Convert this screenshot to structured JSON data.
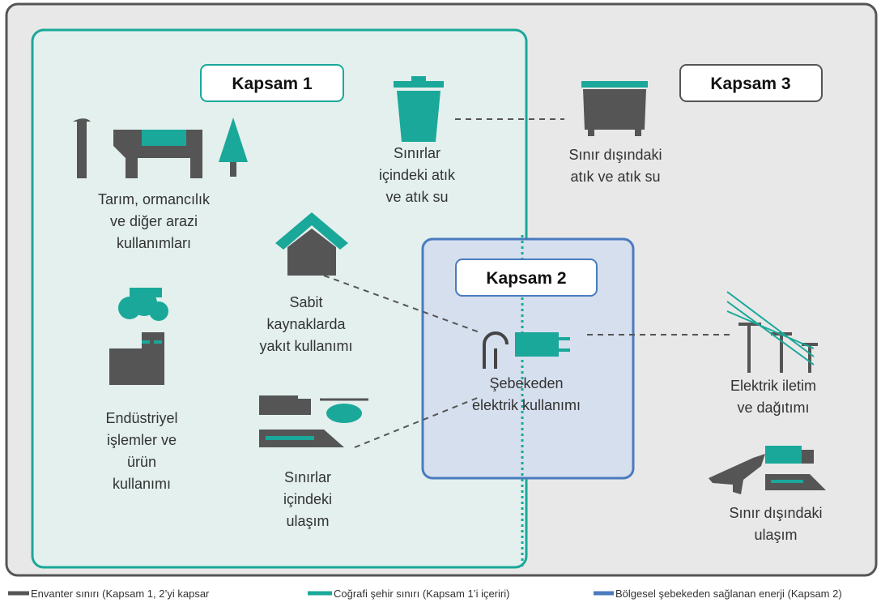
{
  "scopes": {
    "scope1": "Kapsam 1",
    "scope2": "Kapsam 2",
    "scope3": "Kapsam 3"
  },
  "items": [
    {
      "lines": [
        "Tarım, ormancılık",
        "ve diğer arazi",
        "kullanımları"
      ]
    },
    {
      "lines": [
        "Sınırlar",
        "içindeki atık",
        "ve atık su"
      ]
    },
    {
      "lines": [
        "Sınır dışındaki",
        "atık ve atık su"
      ]
    },
    {
      "lines": [
        "Sabit",
        "kaynaklarda",
        "yakıt kullanımı"
      ]
    },
    {
      "lines": [
        "Şebekeden",
        "elektrik kullanımı"
      ]
    },
    {
      "lines": [
        "Elektrik iletim",
        "ve dağıtımı"
      ]
    },
    {
      "lines": [
        "Endüstriyel",
        "işlemler ve",
        "ürün",
        "kullanımı"
      ]
    },
    {
      "lines": [
        "Sınırlar",
        "içindeki",
        "ulaşım"
      ]
    },
    {
      "lines": [
        "Sınır dışındaki",
        "ulaşım"
      ]
    }
  ],
  "legend": [
    "Envanter sınırı (Kapsam 1, 2’yi kapsar",
    "Coğrafi şehir sınırı (Kapsam 1’i içeriri)",
    "Bölgesel şebekeden sağlanan enerji (Kapsam 2)"
  ]
}
